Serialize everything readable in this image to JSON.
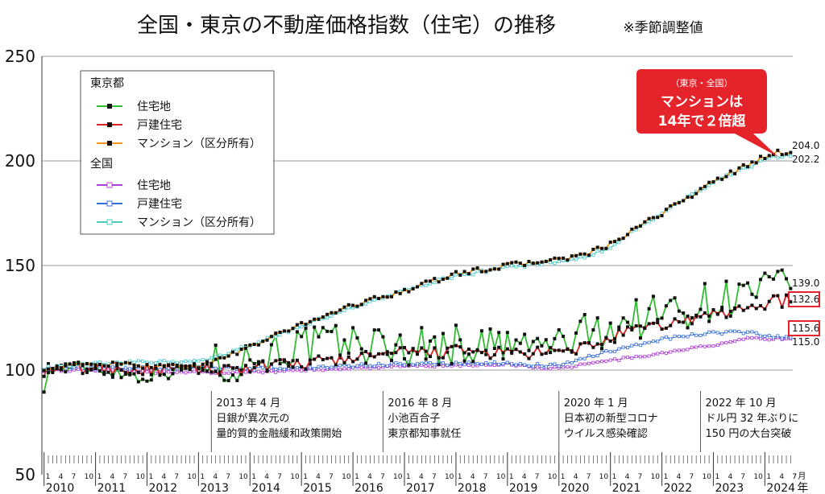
{
  "chart_data": {
    "type": "line",
    "title": "全国・東京の不動産価格指数（住宅）の推移",
    "subtitle": "※季節調整値",
    "ylim": [
      50,
      250
    ],
    "yticks": [
      50,
      100,
      150,
      200,
      250
    ],
    "x_start": "2010-01",
    "x_end": "2024-07",
    "month_tick_labels": [
      "1",
      "4",
      "7",
      "10"
    ],
    "year_labels": [
      "2010",
      "2011",
      "2012",
      "2013",
      "2014",
      "2015",
      "2016",
      "2017",
      "2018",
      "2019",
      "2020",
      "2021",
      "2022",
      "2023",
      "2024"
    ],
    "last_month_label": "7",
    "month_unit": "月",
    "year_unit": "年",
    "legend": {
      "group1": "東京都",
      "group2": "全国",
      "items1": [
        "住宅地",
        "戸建住宅",
        "マンション（区分所有）"
      ],
      "items2": [
        "住宅地",
        "戸建住宅",
        "マンション（区分所有）"
      ]
    },
    "colors": {
      "tokyo_land": "#33bb33",
      "tokyo_house": "#dd2222",
      "tokyo_condo": "#f59a1c",
      "zenkoku_land": "#b03fd6",
      "zenkoku_house": "#3a6fd8",
      "zenkoku_condo": "#4cc9c6",
      "callout": "#e5232a"
    },
    "series": [
      {
        "name": "住宅地",
        "group": "東京都",
        "key": "tokyo_land",
        "anchors": [
          [
            0,
            93
          ],
          [
            2,
            101
          ],
          [
            12,
            101
          ],
          [
            22,
            97
          ],
          [
            34,
            101
          ],
          [
            45,
            104
          ],
          [
            55,
            110
          ],
          [
            70,
            113
          ],
          [
            84,
            111
          ],
          [
            96,
            112
          ],
          [
            110,
            111
          ],
          [
            119,
            112
          ],
          [
            126,
            117
          ],
          [
            137,
            124
          ],
          [
            150,
            130
          ],
          [
            160,
            135
          ],
          [
            170,
            139
          ]
        ],
        "noise": 10,
        "final": 139.0
      },
      {
        "name": "戸建住宅",
        "group": "東京都",
        "key": "tokyo_house",
        "anchors": [
          [
            0,
            100
          ],
          [
            12,
            101
          ],
          [
            24,
            100
          ],
          [
            36,
            100
          ],
          [
            48,
            101
          ],
          [
            60,
            103
          ],
          [
            72,
            106
          ],
          [
            84,
            108
          ],
          [
            96,
            109
          ],
          [
            108,
            108
          ],
          [
            120,
            108
          ],
          [
            126,
            111
          ],
          [
            136,
            118
          ],
          [
            150,
            124
          ],
          [
            160,
            128
          ],
          [
            170,
            133
          ]
        ],
        "noise": 3,
        "final": 132.6
      },
      {
        "name": "マンション（区分所有）",
        "group": "東京都",
        "key": "tokyo_condo",
        "anchors": [
          [
            0,
            101
          ],
          [
            12,
            103
          ],
          [
            24,
            102
          ],
          [
            36,
            102
          ],
          [
            42,
            106
          ],
          [
            48,
            111
          ],
          [
            60,
            122
          ],
          [
            72,
            131
          ],
          [
            84,
            138
          ],
          [
            96,
            146
          ],
          [
            108,
            150
          ],
          [
            120,
            153
          ],
          [
            126,
            155
          ],
          [
            132,
            160
          ],
          [
            144,
            175
          ],
          [
            156,
            190
          ],
          [
            164,
            198
          ],
          [
            170,
            204
          ]
        ],
        "noise": 1.2,
        "final": 204.0
      },
      {
        "name": "住宅地",
        "group": "全国",
        "key": "zenkoku_land",
        "anchors": [
          [
            0,
            100
          ],
          [
            12,
            100
          ],
          [
            24,
            99
          ],
          [
            36,
            99
          ],
          [
            48,
            99
          ],
          [
            60,
            100
          ],
          [
            72,
            101
          ],
          [
            84,
            102
          ],
          [
            96,
            102
          ],
          [
            108,
            103
          ],
          [
            116,
            101
          ],
          [
            120,
            101
          ],
          [
            130,
            104
          ],
          [
            144,
            108
          ],
          [
            156,
            112
          ],
          [
            164,
            115
          ],
          [
            170,
            115
          ]
        ],
        "noise": 0.6,
        "final": 115.0
      },
      {
        "name": "戸建住宅",
        "group": "全国",
        "key": "zenkoku_house",
        "anchors": [
          [
            0,
            101
          ],
          [
            12,
            101
          ],
          [
            24,
            101
          ],
          [
            36,
            101
          ],
          [
            48,
            101
          ],
          [
            60,
            101
          ],
          [
            72,
            102
          ],
          [
            84,
            103
          ],
          [
            96,
            103
          ],
          [
            108,
            103
          ],
          [
            120,
            102
          ],
          [
            130,
            108
          ],
          [
            144,
            115
          ],
          [
            156,
            118
          ],
          [
            164,
            118
          ],
          [
            170,
            115.6
          ]
        ],
        "noise": 0.8,
        "final": 115.6
      },
      {
        "name": "マンション（区分所有）",
        "group": "全国",
        "key": "zenkoku_condo",
        "anchors": [
          [
            0,
            101
          ],
          [
            12,
            103
          ],
          [
            24,
            104
          ],
          [
            36,
            104
          ],
          [
            42,
            107
          ],
          [
            48,
            112
          ],
          [
            60,
            121
          ],
          [
            72,
            130
          ],
          [
            84,
            138
          ],
          [
            96,
            145
          ],
          [
            108,
            149
          ],
          [
            120,
            152
          ],
          [
            126,
            154
          ],
          [
            132,
            159
          ],
          [
            144,
            175
          ],
          [
            156,
            190
          ],
          [
            164,
            197
          ],
          [
            170,
            202.2
          ]
        ],
        "noise": 0.8,
        "final": 202.2
      }
    ],
    "end_labels": [
      "204.0",
      "202.2",
      "139.0",
      "132.6",
      "115.6",
      "115.0"
    ],
    "highlighted_labels": [
      "132.6",
      "115.6"
    ],
    "callout": {
      "line1": "（東京・全国）",
      "line2": "マンションは",
      "line3": "14年で２倍超"
    },
    "annotations": [
      {
        "month": 39,
        "lines": [
          "2013 年 4 月",
          "日銀が異次元の",
          "量的質的金融緩和政策開始"
        ]
      },
      {
        "month": 79,
        "lines": [
          "2016 年 8 月",
          "小池百合子",
          "東京都知事就任"
        ]
      },
      {
        "month": 120,
        "lines": [
          "2020 年 1 月",
          "日本初の新型コロナ",
          "ウイルス感染確認"
        ]
      },
      {
        "month": 153,
        "lines": [
          "2022 年 10 月",
          "ドル円 32 年ぶりに",
          "150 円の大台突破"
        ]
      }
    ]
  }
}
